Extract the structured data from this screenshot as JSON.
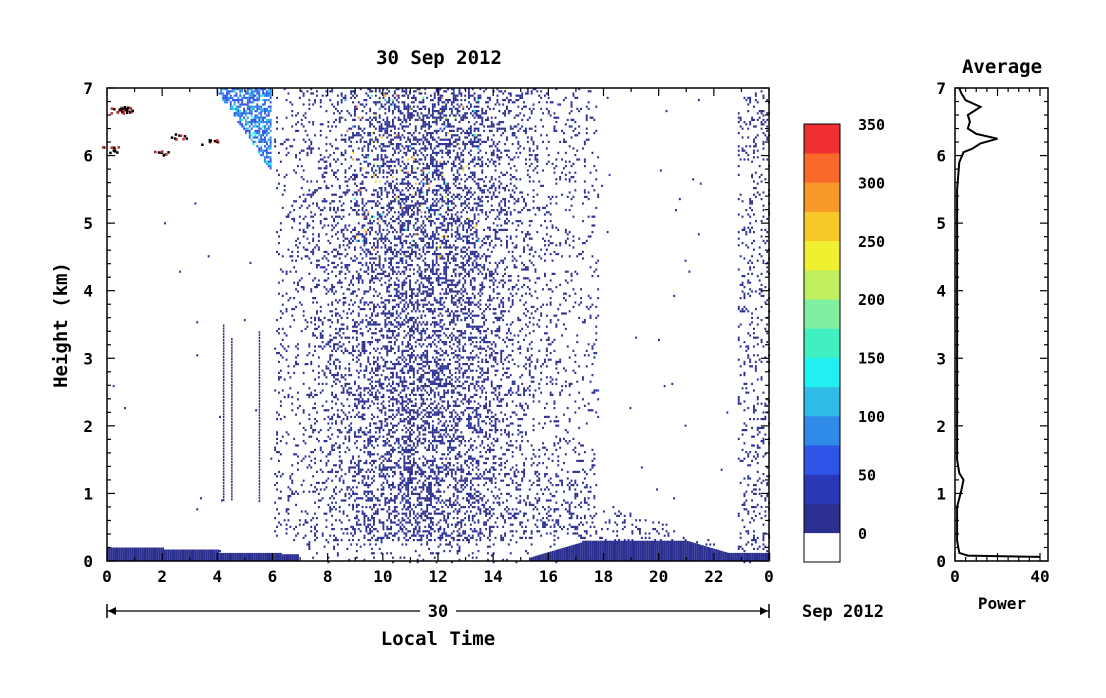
{
  "chart_data": [
    {
      "type": "heatmap",
      "title": "30 Sep 2012",
      "xlabel": "Local Time",
      "ylabel": "Height (km)",
      "x_ticks": [
        "0",
        "2",
        "4",
        "6",
        "8",
        "10",
        "12",
        "14",
        "16",
        "18",
        "20",
        "22",
        "0"
      ],
      "y_ticks": [
        "0",
        "1",
        "2",
        "3",
        "4",
        "5",
        "6",
        "7"
      ],
      "xlim": [
        0,
        24
      ],
      "ylim": [
        0,
        7
      ],
      "date_bar": {
        "day_label": "30",
        "month_label": "Sep 2012"
      },
      "colorbar": {
        "labels": [
          "0",
          "50",
          "100",
          "150",
          "200",
          "250",
          "300",
          "350"
        ],
        "colors": [
          "#ffffff",
          "#2b2f8f",
          "#2a38b8",
          "#2f55e8",
          "#2f8ae8",
          "#2fbde8",
          "#20f0f0",
          "#40f0c0",
          "#80f0a0",
          "#c0f060",
          "#f0f030",
          "#f8c828",
          "#f89828",
          "#f86828",
          "#f03030"
        ],
        "range": [
          0,
          375
        ]
      },
      "features": [
        {
          "name": "surface layer",
          "x_range": [
            0,
            6.9
          ],
          "y_range": [
            0,
            0.2
          ],
          "value_level": "0-25"
        },
        {
          "name": "afternoon boundary layer",
          "x_range": [
            15.5,
            24
          ],
          "y_range": [
            0,
            0.3
          ],
          "value_level": "0-25"
        },
        {
          "name": "convective scatter",
          "x_range": [
            6,
            17.8
          ],
          "y_range": [
            0.2,
            7
          ],
          "value_level": "0-50"
        },
        {
          "name": "high cloud echoes",
          "x_range": [
            4,
            5.8
          ],
          "y_range": [
            5.8,
            7
          ],
          "value_level": "50-150"
        }
      ]
    },
    {
      "type": "line",
      "title": "Average",
      "xlabel": "Power",
      "ylabel": "",
      "xlim": [
        0,
        40
      ],
      "ylim": [
        0,
        7
      ],
      "x_ticks": [
        "0",
        "40"
      ],
      "y_ticks": [
        "0",
        "1",
        "2",
        "3",
        "4",
        "5",
        "6",
        "7"
      ],
      "series": [
        {
          "points": [
            [
              40,
              0.06
            ],
            [
              6,
              0.08
            ],
            [
              2,
              0.12
            ],
            [
              1,
              0.3
            ],
            [
              1,
              0.8
            ],
            [
              3,
              1.05
            ],
            [
              4,
              1.2
            ],
            [
              2,
              1.3
            ],
            [
              1,
              1.5
            ],
            [
              1,
              3
            ],
            [
              1,
              5.5
            ],
            [
              2,
              5.9
            ],
            [
              4,
              6.05
            ],
            [
              8,
              6.1
            ],
            [
              12,
              6.18
            ],
            [
              20,
              6.25
            ],
            [
              10,
              6.32
            ],
            [
              6,
              6.4
            ],
            [
              7,
              6.5
            ],
            [
              6,
              6.6
            ],
            [
              12,
              6.72
            ],
            [
              5,
              6.82
            ],
            [
              3,
              6.92
            ],
            [
              2,
              7
            ]
          ]
        }
      ]
    }
  ]
}
